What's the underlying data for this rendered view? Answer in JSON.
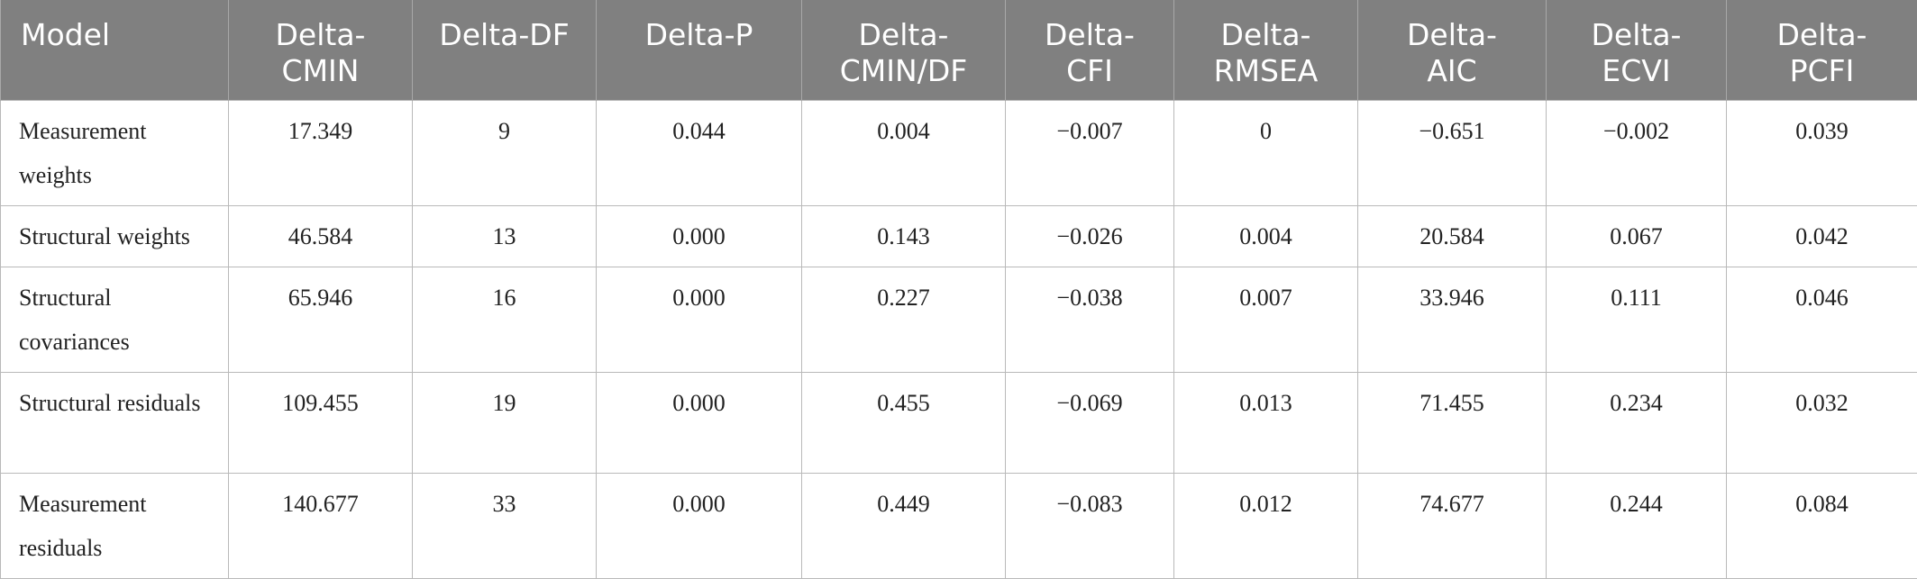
{
  "table": {
    "headers": [
      "Model",
      "Delta-\nCMIN",
      "Delta-DF",
      "Delta-P",
      "Delta-\nCMIN/DF",
      "Delta-\nCFI",
      "Delta-\nRMSEA",
      "Delta-\nAIC",
      "Delta-\nECVI",
      "Delta-\nPCFI"
    ],
    "rows": [
      [
        "Measurement weights",
        "17.349",
        "9",
        "0.044",
        "0.004",
        "−0.007",
        "0",
        "−0.651",
        "−0.002",
        "0.039"
      ],
      [
        "Structural weights",
        "46.584",
        "13",
        "0.000",
        "0.143",
        "−0.026",
        "0.004",
        "20.584",
        "0.067",
        "0.042"
      ],
      [
        "Structural covariances",
        "65.946",
        "16",
        "0.000",
        "0.227",
        "−0.038",
        "0.007",
        "33.946",
        "0.111",
        "0.046"
      ],
      [
        "Structural residuals",
        "109.455",
        "19",
        "0.000",
        "0.455",
        "−0.069",
        "0.013",
        "71.455",
        "0.234",
        "0.032"
      ],
      [
        "Measurement residuals",
        "140.677",
        "33",
        "0.000",
        "0.449",
        "−0.083",
        "0.012",
        "74.677",
        "0.244",
        "0.084"
      ]
    ]
  }
}
